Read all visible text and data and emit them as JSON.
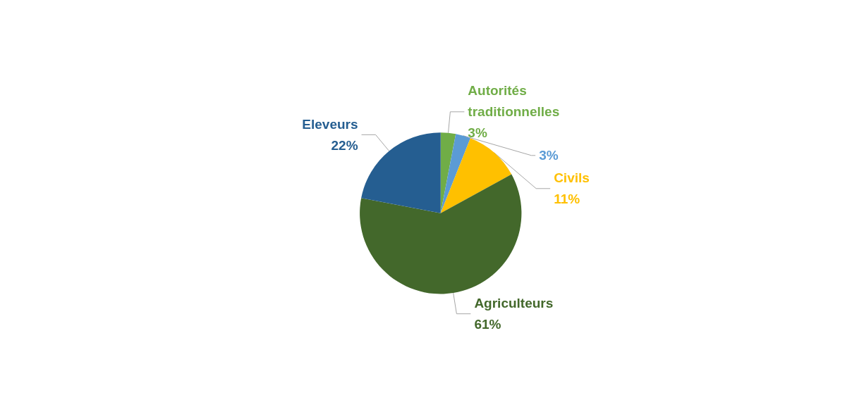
{
  "chart_data": {
    "type": "pie",
    "categories": [
      "Autorités traditionnelles",
      null,
      "Civils",
      "Agriculteurs",
      "Eleveurs"
    ],
    "values": [
      3,
      3,
      11,
      61,
      22
    ],
    "value_labels": [
      "3%",
      "3%",
      "11%",
      "61%",
      "22%"
    ],
    "colors": [
      "#70ad47",
      "#5b9bd5",
      "#ffc000",
      "#43682b",
      "#255e91"
    ],
    "legend": false
  }
}
